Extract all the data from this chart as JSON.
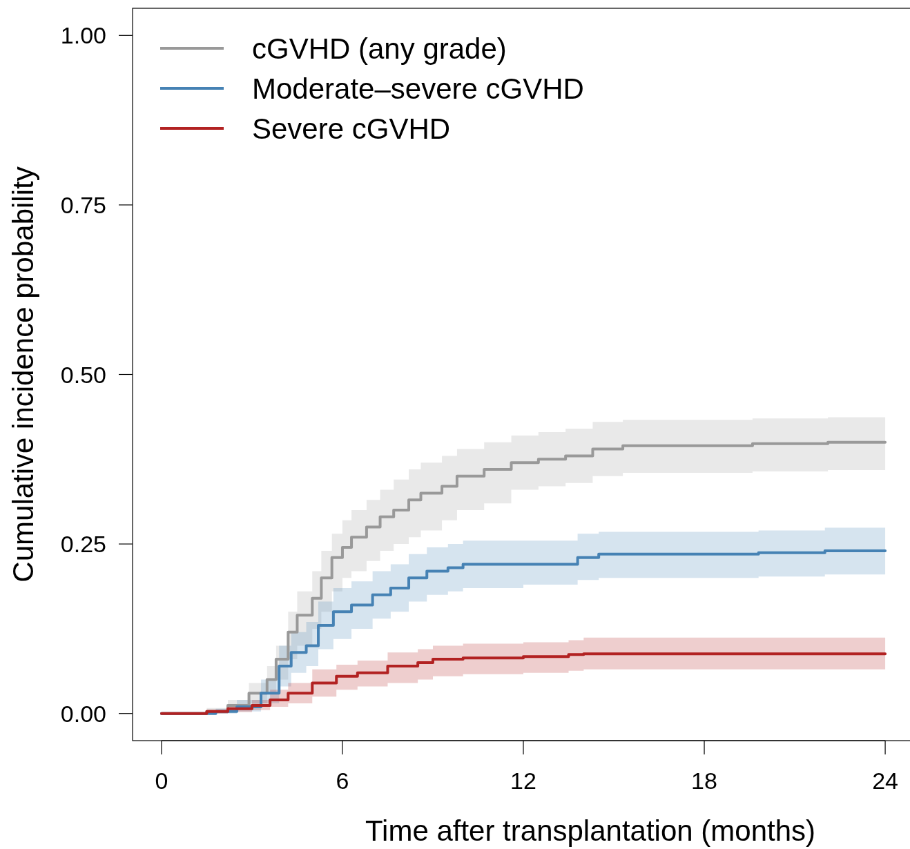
{
  "chart_data": {
    "type": "step",
    "xlabel": "Time after transplantation (months)",
    "ylabel": "Cumulative incidence probability",
    "xlim": [
      -0.96,
      24.96
    ],
    "ylim": [
      -0.04,
      1.04
    ],
    "xticks": [
      0,
      6,
      12,
      18,
      24
    ],
    "yticks": [
      {
        "value": 0,
        "label": "0.00"
      },
      {
        "value": 0.25,
        "label": "0.25"
      },
      {
        "value": 0.5,
        "label": "0.50"
      },
      {
        "value": 0.75,
        "label": "0.75"
      },
      {
        "value": 1,
        "label": "1.00"
      }
    ],
    "legend": "top left",
    "grid": false,
    "series": [
      {
        "name": "cGVHD (any grade)",
        "color": "#999999",
        "x": [
          0,
          0.85,
          1.5,
          2.2,
          2.9,
          3.5,
          3.8,
          4.2,
          4.5,
          5,
          5.3,
          5.65,
          6,
          6.3,
          6.8,
          7.25,
          7.7,
          8.2,
          8.6,
          9.3,
          9.8,
          10.7,
          11.6,
          12.5,
          13.4,
          14.3,
          15.3,
          19.6,
          22.1,
          24
        ],
        "values": [
          0,
          0,
          0.003,
          0.012,
          0.03,
          0.05,
          0.08,
          0.12,
          0.145,
          0.17,
          0.2,
          0.23,
          0.245,
          0.26,
          0.275,
          0.29,
          0.3,
          0.315,
          0.325,
          0.335,
          0.35,
          0.36,
          0.37,
          0.375,
          0.38,
          0.39,
          0.395,
          0.398,
          0.4,
          0.4
        ],
        "lower": [
          0,
          0,
          0,
          0.005,
          0.015,
          0.03,
          0.05,
          0.08,
          0.1,
          0.125,
          0.15,
          0.18,
          0.2,
          0.21,
          0.225,
          0.24,
          0.25,
          0.26,
          0.27,
          0.285,
          0.3,
          0.31,
          0.33,
          0.335,
          0.34,
          0.35,
          0.355,
          0.357,
          0.359,
          0.359
        ],
        "upper": [
          0,
          0,
          0.008,
          0.02,
          0.045,
          0.07,
          0.1,
          0.15,
          0.18,
          0.21,
          0.24,
          0.265,
          0.285,
          0.3,
          0.315,
          0.33,
          0.345,
          0.36,
          0.37,
          0.38,
          0.39,
          0.4,
          0.41,
          0.415,
          0.42,
          0.43,
          0.433,
          0.435,
          0.437,
          0.437
        ]
      },
      {
        "name": "Moderate–severe cGVHD",
        "color": "#4682b4",
        "x": [
          0,
          1,
          1.8,
          2.5,
          3.3,
          3.9,
          4.3,
          4.8,
          5.2,
          5.7,
          6.3,
          7,
          7.6,
          8.2,
          8.8,
          9.5,
          10,
          12,
          13.8,
          14.5,
          19.8,
          22,
          24
        ],
        "values": [
          0,
          0,
          0.003,
          0.01,
          0.03,
          0.07,
          0.09,
          0.1,
          0.13,
          0.15,
          0.16,
          0.175,
          0.185,
          0.2,
          0.21,
          0.215,
          0.22,
          0.22,
          0.23,
          0.235,
          0.237,
          0.24,
          0.24
        ],
        "lower": [
          0,
          0,
          0,
          0.003,
          0.015,
          0.04,
          0.06,
          0.07,
          0.095,
          0.11,
          0.125,
          0.14,
          0.15,
          0.165,
          0.175,
          0.18,
          0.185,
          0.19,
          0.197,
          0.2,
          0.202,
          0.205,
          0.205
        ],
        "upper": [
          0,
          0,
          0.007,
          0.02,
          0.05,
          0.1,
          0.12,
          0.135,
          0.165,
          0.185,
          0.195,
          0.21,
          0.22,
          0.235,
          0.245,
          0.25,
          0.255,
          0.255,
          0.265,
          0.268,
          0.27,
          0.274,
          0.274
        ]
      },
      {
        "name": "Severe cGVHD",
        "color": "#b22222",
        "x": [
          0,
          1,
          1.5,
          2.2,
          3,
          3.6,
          4.2,
          5,
          5.8,
          6.5,
          7.5,
          8.5,
          9,
          10,
          12,
          13.5,
          14,
          24
        ],
        "values": [
          0,
          0,
          0.003,
          0.007,
          0.012,
          0.02,
          0.03,
          0.045,
          0.055,
          0.06,
          0.07,
          0.075,
          0.08,
          0.082,
          0.084,
          0.087,
          0.088,
          0.088
        ],
        "lower": [
          0,
          0,
          0,
          0.002,
          0.005,
          0.01,
          0.015,
          0.025,
          0.035,
          0.04,
          0.045,
          0.05,
          0.055,
          0.058,
          0.06,
          0.063,
          0.065,
          0.065
        ],
        "upper": [
          0,
          0,
          0.006,
          0.013,
          0.02,
          0.035,
          0.045,
          0.065,
          0.072,
          0.078,
          0.09,
          0.095,
          0.1,
          0.103,
          0.105,
          0.108,
          0.112,
          0.112
        ]
      }
    ]
  }
}
